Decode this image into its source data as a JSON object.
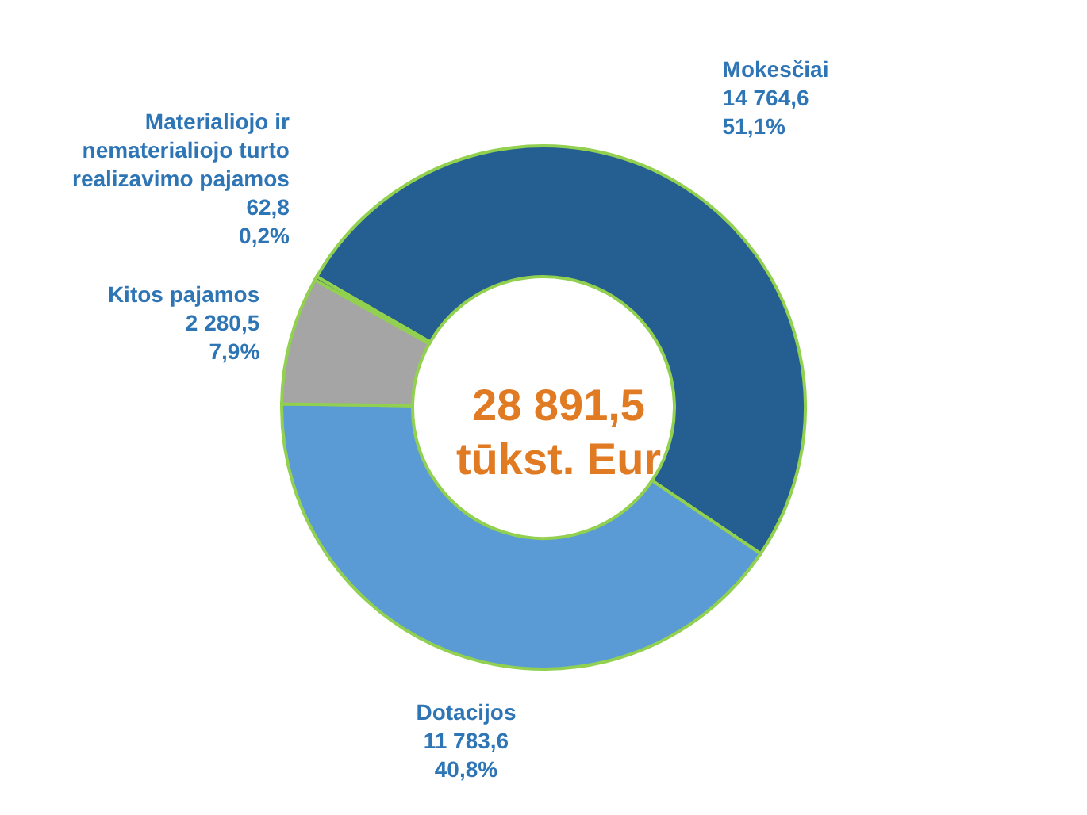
{
  "chart_data": {
    "type": "donut",
    "categories": [
      "Mokesčiai",
      "Dotacijos",
      "Kitos pajamos",
      "Materialiojo ir nematerialiojo turto realizavimo pajamos"
    ],
    "values": [
      14764.6,
      11783.6,
      2280.5,
      62.8
    ],
    "value_labels": [
      "14 764,6\n51,1%",
      "11 783,6\n40,8%",
      "2 280,5\n7,9%",
      "62,8\n0,2%"
    ],
    "colors": [
      "#255e91",
      "#5b9bd5",
      "#a5a5a5",
      "#264478"
    ],
    "annotations": [
      "28 891,5",
      "tūkst. Eur"
    ]
  }
}
